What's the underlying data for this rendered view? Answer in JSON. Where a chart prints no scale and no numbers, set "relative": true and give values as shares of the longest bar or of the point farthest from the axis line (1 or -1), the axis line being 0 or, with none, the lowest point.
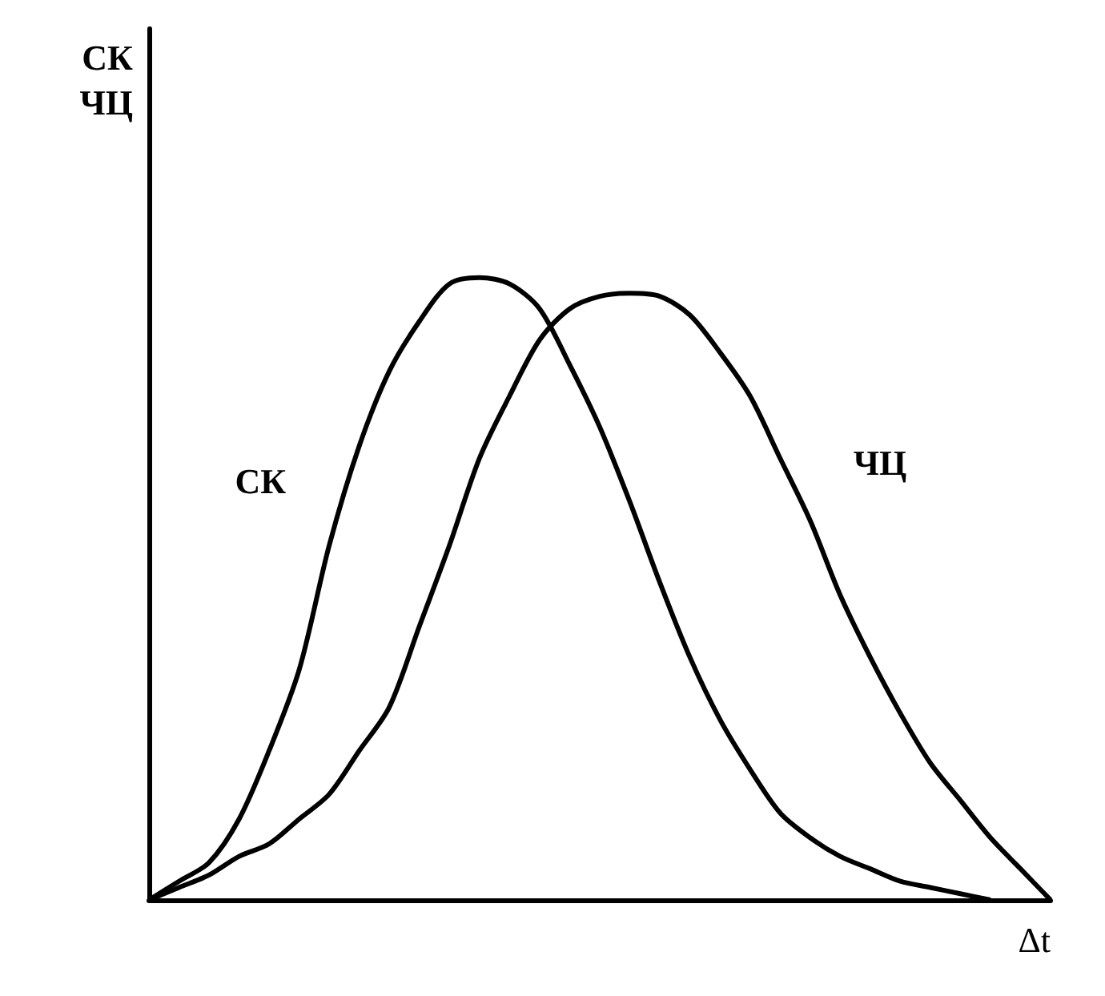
{
  "chart_data": {
    "type": "line",
    "relative": true,
    "ylabel": "СК\nЧЦ",
    "xlabel": "Δt",
    "grid": false,
    "legend": false,
    "marker": "none",
    "line_style": "solid",
    "categories": [
      null,
      null,
      null,
      null,
      null,
      null,
      null,
      null,
      null,
      null,
      null,
      null,
      null,
      null,
      null,
      null,
      null,
      null,
      null,
      null,
      null,
      null,
      null,
      null,
      null,
      null,
      null,
      null,
      null,
      null,
      null
    ],
    "series": [
      {
        "name": "СК",
        "color": "#000000",
        "values": [
          0,
          0.03,
          0.06,
          0.13,
          0.24,
          0.37,
          0.57,
          0.73,
          0.85,
          0.93,
          0.99,
          1,
          0.99,
          0.95,
          0.86,
          0.76,
          0.64,
          0.51,
          0.39,
          0.29,
          0.21,
          0.14,
          0.1,
          0.07,
          0.05,
          0.03,
          0.02,
          0.01,
          0,
          null,
          null
        ]
      },
      {
        "name": "ЧЦ",
        "color": "#000000",
        "values": [
          0,
          0.02,
          0.04,
          0.07,
          0.09,
          0.13,
          0.17,
          0.24,
          0.31,
          0.44,
          0.57,
          0.71,
          0.81,
          0.9,
          0.95,
          0.97,
          0.975,
          0.97,
          0.94,
          0.88,
          0.81,
          0.71,
          0.61,
          0.49,
          0.39,
          0.3,
          0.22,
          0.16,
          0.1,
          0.05,
          0
        ]
      }
    ]
  }
}
